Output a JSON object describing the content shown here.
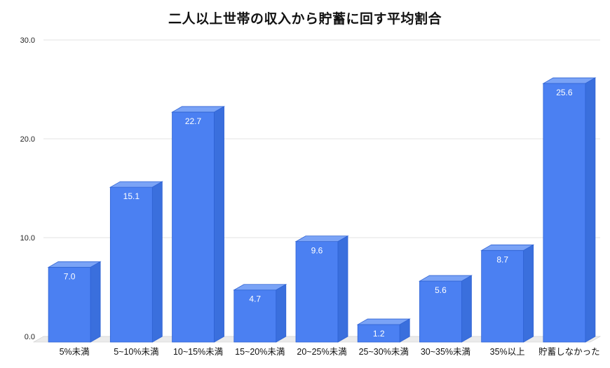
{
  "page": {
    "title": "二人以上世帯の収入から貯蓄に回す平均割合"
  },
  "chart_data": {
    "type": "bar",
    "title": "二人以上世帯の収入から貯蓄に回す平均割合",
    "categories": [
      "5%未満",
      "5~10%未満",
      "10~15%未満",
      "15~20%未満",
      "20~25%未満",
      "25~30%未満",
      "30~35%未満",
      "35%以上",
      "貯蓄しなかった"
    ],
    "values": [
      7.0,
      15.1,
      22.7,
      4.7,
      9.6,
      1.2,
      5.6,
      8.7,
      25.6
    ],
    "value_labels": [
      "7.0",
      "15.1",
      "22.7",
      "4.7",
      "9.6",
      "1.2",
      "5.6",
      "8.7",
      "25.6"
    ],
    "xlabel": "",
    "ylabel": "",
    "ylim": [
      0,
      30
    ],
    "yticks": [
      0,
      10,
      20,
      30
    ],
    "ytick_labels": [
      "0.0",
      "10.0",
      "20.0",
      "30.0"
    ],
    "grid": true,
    "legend": false,
    "style": {
      "bar_front_color": "#4b80f2",
      "bar_top_color": "#7aa3f6",
      "bar_side_color": "#3a6fdd",
      "bar_edge_color": "#2f63d4",
      "value_label_color": "#ffffff",
      "grid_color": "#e3e3e3",
      "floor_color": "#ebebeb",
      "floor_edge_color": "#cccccc",
      "axis_label_color": "#111111",
      "background": "#ffffff"
    }
  }
}
